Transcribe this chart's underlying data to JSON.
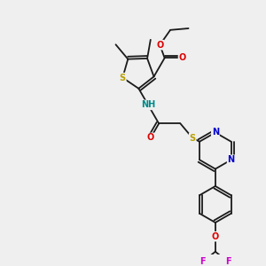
{
  "background_color": "#efefef",
  "bond_color": "#1a1a1a",
  "atom_colors": {
    "S": "#b8a000",
    "N": "#0000cc",
    "O": "#dd0000",
    "F": "#cc00cc",
    "H": "#008888",
    "C": "#1a1a1a"
  },
  "figsize": [
    3.0,
    3.0
  ],
  "dpi": 100
}
